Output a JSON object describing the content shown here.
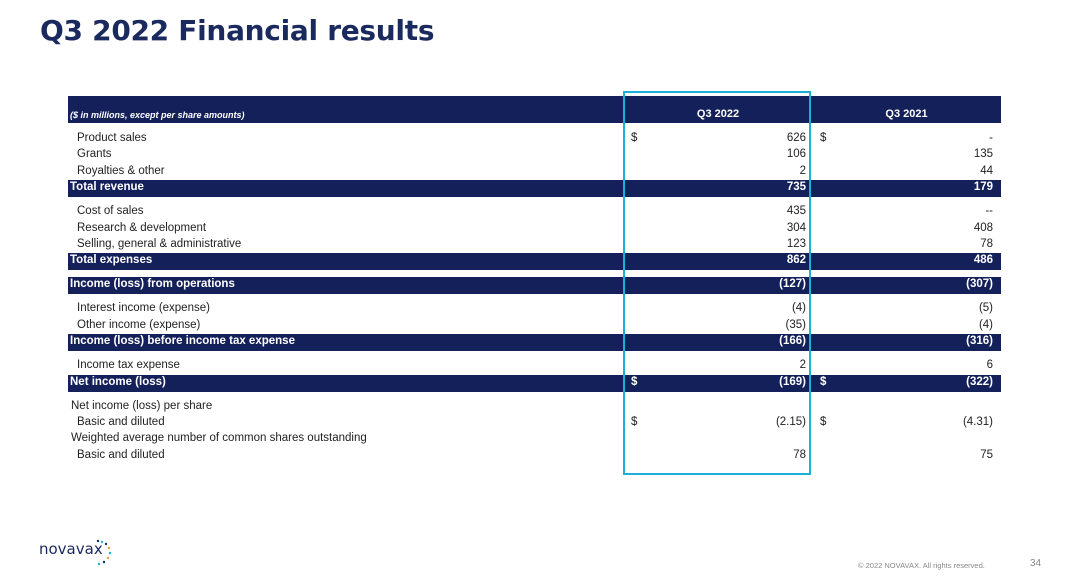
{
  "title": "Q3 2022 Financial results",
  "table": {
    "header_label": "($ in millions, except per share amounts)",
    "col1": "Q3 2022",
    "col2": "Q3 2021",
    "rows": [
      {
        "label": "Product sales",
        "d1": "$",
        "v1": "626",
        "d2": "$",
        "v2": "-"
      },
      {
        "label": "Grants",
        "v1": "106",
        "v2": "135"
      },
      {
        "label": "Royalties & other",
        "v1": "2",
        "v2": "44"
      },
      {
        "label": "Total revenue",
        "v1": "735",
        "v2": "179"
      },
      {
        "label": "Cost of sales",
        "v1": "435",
        "v2": "--"
      },
      {
        "label": "Research & development",
        "v1": "304",
        "v2": "408"
      },
      {
        "label": "Selling, general & administrative",
        "v1": "123",
        "v2": "78"
      },
      {
        "label": "Total expenses",
        "v1": "862",
        "v2": "486"
      },
      {
        "label": "Income (loss) from operations",
        "v1": "(127)",
        "v2": "(307)"
      },
      {
        "label": "Interest income (expense)",
        "v1": "(4)",
        "v2": "(5)"
      },
      {
        "label": "Other income (expense)",
        "v1": "(35)",
        "v2": "(4)"
      },
      {
        "label": "Income (loss) before income tax expense",
        "v1": "(166)",
        "v2": "(316)"
      },
      {
        "label": "Income tax expense",
        "v1": "2",
        "v2": "6"
      },
      {
        "label": "Net income (loss)",
        "d1": "$",
        "v1": "(169)",
        "d2": "$",
        "v2": "(322)"
      },
      {
        "label": "Net income (loss) per share"
      },
      {
        "label": "Basic and diluted",
        "d1": "$",
        "v1": "(2.15)",
        "d2": "$",
        "v2": "(4.31)"
      },
      {
        "label": "Weighted average number of common shares outstanding"
      },
      {
        "label": "Basic and diluted",
        "v1": "78",
        "v2": "75"
      }
    ]
  },
  "logo_text": "novavax",
  "footer": "© 2022 NOVAVAX. All rights reserved.",
  "page_number": "34"
}
